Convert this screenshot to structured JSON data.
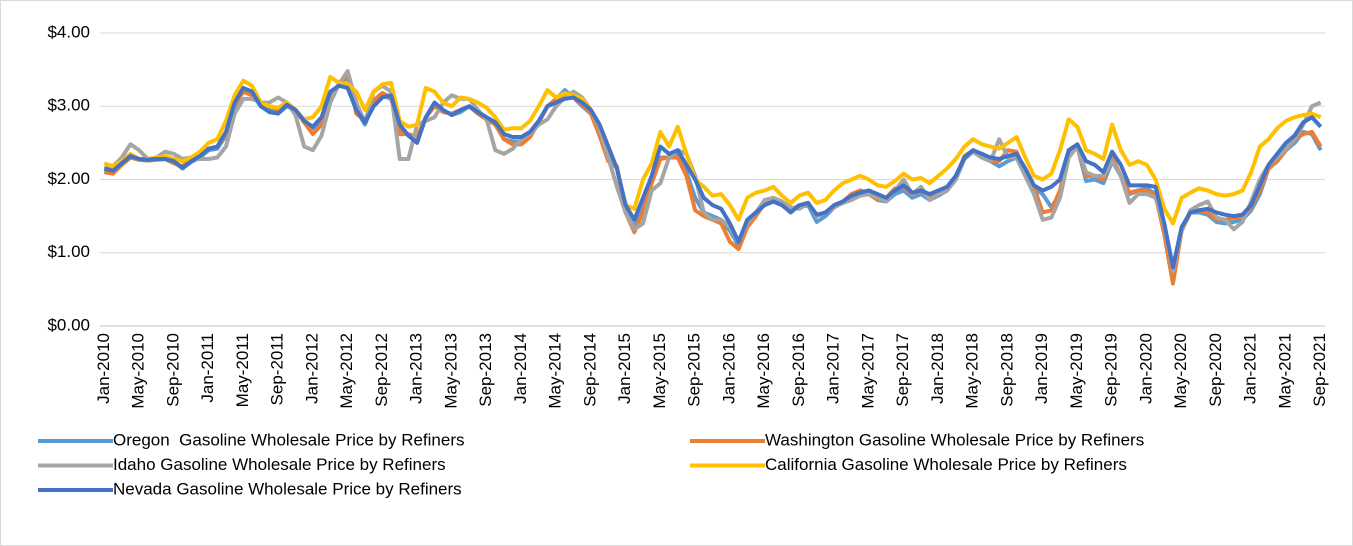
{
  "chart_data": {
    "type": "line",
    "categories": [
      "Jan-2010",
      null,
      null,
      null,
      "May-2010",
      null,
      null,
      null,
      "Sep-2010",
      null,
      null,
      null,
      "Jan-2011",
      null,
      null,
      null,
      "May-2011",
      null,
      null,
      null,
      "Sep-2011",
      null,
      null,
      null,
      "Jan-2012",
      null,
      null,
      null,
      "May-2012",
      null,
      null,
      null,
      "Sep-2012",
      null,
      null,
      null,
      "Jan-2013",
      null,
      null,
      null,
      "May-2013",
      null,
      null,
      null,
      "Sep-2013",
      null,
      null,
      null,
      "Jan-2014",
      null,
      null,
      null,
      "May-2014",
      null,
      null,
      null,
      "Sep-2014",
      null,
      null,
      null,
      "Jan-2015",
      null,
      null,
      null,
      "May-2015",
      null,
      null,
      null,
      "Sep-2015",
      null,
      null,
      null,
      "Jan-2016",
      null,
      null,
      null,
      "May-2016",
      null,
      null,
      null,
      "Sep-2016",
      null,
      null,
      null,
      "Jan-2017",
      null,
      null,
      null,
      "May-2017",
      null,
      null,
      null,
      "Sep-2017",
      null,
      null,
      null,
      "Jan-2018",
      null,
      null,
      null,
      "May-2018",
      null,
      null,
      null,
      "Sep-2018",
      null,
      null,
      null,
      "Jan-2019",
      null,
      null,
      null,
      "May-2019",
      null,
      null,
      null,
      "Sep-2019",
      null,
      null,
      null,
      "Jan-2020",
      null,
      null,
      null,
      "May-2020",
      null,
      null,
      null,
      "Sep-2020",
      null,
      null,
      null,
      "Jan-2021",
      null,
      null,
      null,
      "May-2021",
      null,
      null,
      null,
      "Sep-2021"
    ],
    "series": [
      {
        "name": "Oregon  Gasoline Wholesale Price by Refiners",
        "color": "#5b9bd5",
        "values": [
          2.12,
          2.1,
          2.2,
          2.3,
          2.27,
          2.26,
          2.27,
          2.28,
          2.24,
          2.15,
          2.24,
          2.3,
          2.4,
          2.42,
          2.6,
          3.0,
          3.22,
          3.18,
          3.0,
          2.95,
          2.9,
          3.0,
          2.95,
          2.8,
          2.7,
          2.8,
          3.15,
          3.3,
          3.4,
          2.95,
          2.75,
          3.05,
          3.15,
          3.1,
          2.7,
          2.6,
          2.55,
          2.85,
          3.0,
          2.95,
          2.88,
          2.92,
          3.0,
          2.9,
          2.82,
          2.75,
          2.55,
          2.52,
          2.52,
          2.6,
          2.78,
          3.0,
          3.1,
          3.22,
          3.12,
          3.0,
          2.9,
          2.65,
          2.3,
          2.15,
          1.55,
          1.35,
          1.6,
          2.0,
          2.3,
          2.3,
          2.35,
          2.1,
          1.75,
          1.55,
          1.5,
          1.45,
          1.3,
          1.1,
          1.4,
          1.55,
          1.7,
          1.72,
          1.68,
          1.58,
          1.62,
          1.65,
          1.42,
          1.5,
          1.62,
          1.7,
          1.78,
          1.85,
          1.82,
          1.72,
          1.7,
          1.8,
          1.85,
          1.75,
          1.8,
          1.72,
          1.78,
          1.85,
          2.0,
          2.28,
          2.38,
          2.3,
          2.25,
          2.18,
          2.25,
          2.3,
          2.05,
          1.88,
          1.8,
          1.62,
          1.8,
          2.35,
          2.45,
          1.98,
          2.0,
          1.95,
          2.25,
          2.05,
          1.8,
          1.85,
          1.88,
          1.8,
          1.3,
          0.78,
          1.35,
          1.55,
          1.55,
          1.52,
          1.42,
          1.4,
          1.42,
          1.45,
          1.58,
          1.8,
          2.15,
          2.25,
          2.4,
          2.5,
          2.65,
          2.62,
          2.4
        ]
      },
      {
        "name": "Washington Gasoline Wholesale Price by Refiners",
        "color": "#ed7d31",
        "values": [
          2.1,
          2.08,
          2.2,
          2.3,
          2.27,
          2.26,
          2.27,
          2.28,
          2.22,
          2.18,
          2.28,
          2.32,
          2.42,
          2.45,
          2.62,
          3.02,
          3.2,
          3.15,
          3.05,
          3.0,
          2.95,
          3.05,
          2.95,
          2.78,
          2.62,
          2.75,
          3.15,
          3.28,
          3.45,
          2.9,
          2.8,
          3.08,
          3.18,
          3.12,
          2.62,
          2.62,
          2.58,
          2.85,
          3.0,
          2.92,
          2.9,
          2.95,
          3.0,
          2.9,
          2.82,
          2.75,
          2.55,
          2.48,
          2.48,
          2.58,
          2.78,
          3.0,
          3.1,
          3.15,
          3.12,
          3.02,
          2.9,
          2.6,
          2.25,
          2.18,
          1.55,
          1.28,
          1.55,
          1.95,
          2.28,
          2.3,
          2.3,
          2.05,
          1.58,
          1.5,
          1.45,
          1.4,
          1.15,
          1.05,
          1.35,
          1.5,
          1.68,
          1.7,
          1.65,
          1.58,
          1.65,
          1.68,
          1.5,
          1.55,
          1.62,
          1.7,
          1.8,
          1.85,
          1.8,
          1.72,
          1.75,
          1.88,
          1.9,
          1.8,
          1.85,
          1.75,
          1.8,
          1.88,
          2.02,
          2.32,
          2.4,
          2.3,
          2.25,
          2.25,
          2.4,
          2.38,
          2.1,
          1.9,
          1.55,
          1.58,
          1.85,
          2.4,
          2.45,
          2.05,
          2.05,
          2.0,
          2.3,
          2.05,
          1.82,
          1.85,
          1.85,
          1.78,
          1.25,
          0.58,
          1.3,
          1.55,
          1.58,
          1.55,
          1.45,
          1.45,
          1.48,
          1.48,
          1.62,
          1.85,
          2.15,
          2.25,
          2.4,
          2.55,
          2.62,
          2.65,
          2.45
        ]
      },
      {
        "name": "Idaho Gasoline Wholesale Price by Refiners",
        "color": "#a5a5a5",
        "values": [
          2.15,
          2.18,
          2.3,
          2.48,
          2.4,
          2.28,
          2.3,
          2.38,
          2.35,
          2.28,
          2.3,
          2.28,
          2.28,
          2.3,
          2.45,
          2.9,
          3.1,
          3.1,
          3.05,
          3.05,
          3.12,
          3.05,
          2.88,
          2.45,
          2.4,
          2.6,
          3.05,
          3.3,
          3.48,
          3.05,
          2.78,
          3.2,
          3.28,
          3.2,
          2.28,
          2.28,
          2.75,
          2.8,
          2.85,
          3.05,
          3.15,
          3.1,
          3.1,
          2.95,
          2.82,
          2.4,
          2.35,
          2.42,
          2.55,
          2.62,
          2.75,
          2.82,
          3.0,
          3.12,
          3.2,
          3.12,
          2.95,
          2.7,
          2.3,
          1.9,
          1.55,
          1.32,
          1.4,
          1.85,
          1.95,
          2.3,
          2.4,
          2.35,
          2.05,
          1.55,
          1.45,
          1.45,
          1.35,
          1.15,
          1.4,
          1.55,
          1.72,
          1.75,
          1.7,
          1.62,
          1.6,
          1.68,
          1.5,
          1.55,
          1.62,
          1.68,
          1.72,
          1.78,
          1.8,
          1.75,
          1.7,
          1.85,
          2.0,
          1.8,
          1.9,
          1.72,
          1.8,
          1.85,
          2.0,
          2.3,
          2.38,
          2.3,
          2.25,
          2.55,
          2.3,
          2.3,
          2.05,
          1.8,
          1.45,
          1.48,
          1.75,
          2.3,
          2.45,
          2.1,
          2.05,
          2.05,
          2.25,
          2.05,
          1.68,
          1.8,
          1.8,
          1.75,
          1.35,
          0.75,
          1.3,
          1.58,
          1.65,
          1.7,
          1.48,
          1.45,
          1.32,
          1.42,
          1.7,
          2.0,
          2.2,
          2.3,
          2.42,
          2.55,
          2.75,
          3.0,
          3.05
        ]
      },
      {
        "name": "California Gasoline Wholesale Price by Refiners",
        "color": "#ffc000",
        "values": [
          2.22,
          2.18,
          2.25,
          2.35,
          2.28,
          2.28,
          2.3,
          2.32,
          2.28,
          2.25,
          2.3,
          2.38,
          2.5,
          2.55,
          2.8,
          3.15,
          3.35,
          3.28,
          3.05,
          3.0,
          2.98,
          3.05,
          2.95,
          2.82,
          2.85,
          3.0,
          3.4,
          3.32,
          3.3,
          3.2,
          2.95,
          3.2,
          3.3,
          3.32,
          2.8,
          2.72,
          2.75,
          3.25,
          3.2,
          3.05,
          3.0,
          3.12,
          3.1,
          3.05,
          2.98,
          2.85,
          2.68,
          2.7,
          2.7,
          2.8,
          3.0,
          3.22,
          3.12,
          3.18,
          3.15,
          3.1,
          2.95,
          2.75,
          2.45,
          2.15,
          1.65,
          1.6,
          2.0,
          2.22,
          2.65,
          2.45,
          2.72,
          2.35,
          2.0,
          1.9,
          1.78,
          1.8,
          1.65,
          1.45,
          1.75,
          1.82,
          1.85,
          1.9,
          1.78,
          1.68,
          1.78,
          1.82,
          1.68,
          1.72,
          1.85,
          1.95,
          2.0,
          2.05,
          2.0,
          1.92,
          1.9,
          1.98,
          2.08,
          2.0,
          2.02,
          1.95,
          2.05,
          2.15,
          2.28,
          2.45,
          2.55,
          2.48,
          2.45,
          2.42,
          2.5,
          2.58,
          2.3,
          2.05,
          2.0,
          2.08,
          2.4,
          2.82,
          2.72,
          2.4,
          2.35,
          2.28,
          2.75,
          2.4,
          2.2,
          2.25,
          2.2,
          2.0,
          1.6,
          1.4,
          1.75,
          1.82,
          1.88,
          1.85,
          1.8,
          1.78,
          1.8,
          1.85,
          2.1,
          2.45,
          2.55,
          2.7,
          2.8,
          2.85,
          2.88,
          2.9,
          2.85
        ]
      },
      {
        "name": "Nevada Gasoline Wholesale Price by Refiners",
        "color": "#4472c4",
        "values": [
          2.15,
          2.12,
          2.22,
          2.32,
          2.28,
          2.27,
          2.28,
          2.28,
          2.25,
          2.16,
          2.25,
          2.32,
          2.42,
          2.45,
          2.65,
          3.05,
          3.25,
          3.2,
          3.0,
          2.92,
          2.9,
          3.02,
          2.95,
          2.8,
          2.72,
          2.85,
          3.2,
          3.28,
          3.25,
          2.95,
          2.78,
          3.0,
          3.12,
          3.15,
          2.75,
          2.6,
          2.5,
          2.85,
          3.05,
          2.95,
          2.88,
          2.95,
          3.0,
          2.92,
          2.85,
          2.78,
          2.62,
          2.58,
          2.58,
          2.65,
          2.8,
          3.0,
          3.05,
          3.1,
          3.12,
          3.05,
          2.95,
          2.75,
          2.45,
          2.15,
          1.65,
          1.45,
          1.75,
          2.05,
          2.45,
          2.35,
          2.4,
          2.2,
          2.0,
          1.75,
          1.65,
          1.6,
          1.4,
          1.15,
          1.45,
          1.55,
          1.65,
          1.7,
          1.65,
          1.55,
          1.65,
          1.68,
          1.52,
          1.55,
          1.65,
          1.7,
          1.78,
          1.82,
          1.85,
          1.8,
          1.75,
          1.85,
          1.92,
          1.82,
          1.85,
          1.8,
          1.85,
          1.9,
          2.05,
          2.3,
          2.4,
          2.35,
          2.3,
          2.28,
          2.32,
          2.35,
          2.15,
          1.92,
          1.85,
          1.9,
          2.0,
          2.4,
          2.48,
          2.25,
          2.2,
          2.1,
          2.38,
          2.2,
          1.92,
          1.92,
          1.92,
          1.9,
          1.4,
          0.8,
          1.35,
          1.55,
          1.58,
          1.6,
          1.55,
          1.52,
          1.5,
          1.52,
          1.65,
          1.92,
          2.2,
          2.35,
          2.5,
          2.6,
          2.78,
          2.85,
          2.72
        ]
      }
    ],
    "ylim": [
      0,
      4
    ],
    "yticks": [
      {
        "value": 0,
        "label": "$0.00"
      },
      {
        "value": 1,
        "label": "$1.00"
      },
      {
        "value": 2,
        "label": "$2.00"
      },
      {
        "value": 3,
        "label": "$3.00"
      },
      {
        "value": 4,
        "label": "$4.00"
      }
    ],
    "grid": true,
    "legend": "bottom"
  }
}
